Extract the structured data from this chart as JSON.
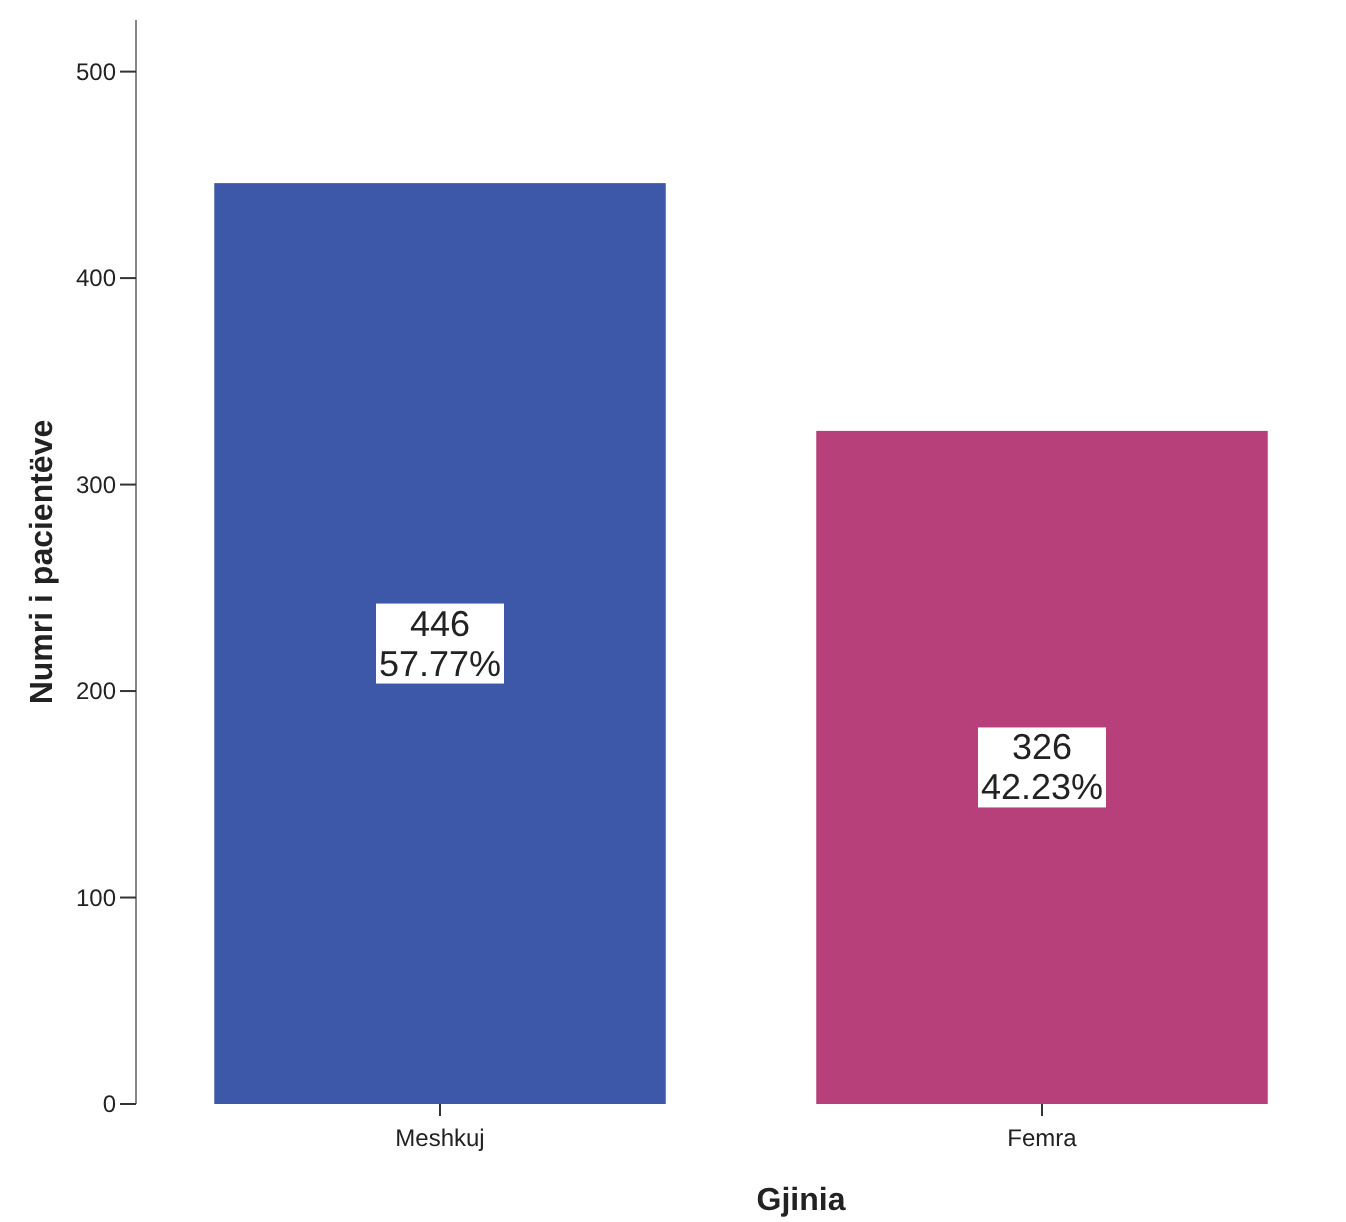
{
  "chart_data": {
    "type": "bar",
    "xlabel": "Gjinia",
    "ylabel": "Numri i pacientëve",
    "categories": [
      "Meshkuj",
      "Femra"
    ],
    "values": [
      446,
      326
    ],
    "colors": [
      "#3d58a8",
      "#b8407a"
    ],
    "value_labels": [
      "446\n57.77%",
      "326\n42.23%"
    ],
    "ylim": [
      0,
      525
    ],
    "yticks": [
      0,
      100,
      200,
      300,
      400,
      500
    ],
    "grid": false
  }
}
